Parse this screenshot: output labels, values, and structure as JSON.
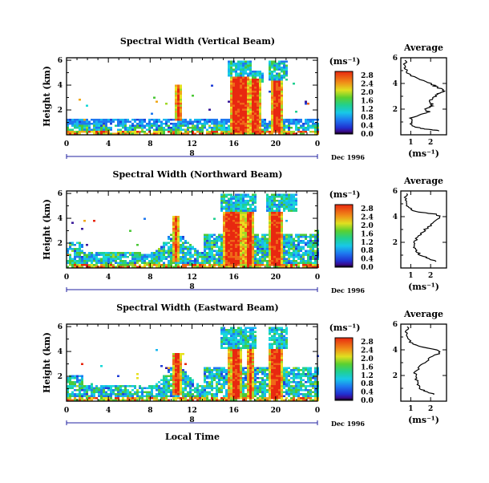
{
  "chart_data": {
    "type": "heatmap",
    "x_axis_label": "Local Time",
    "date_label": "Dec 1996",
    "day_tick": "8",
    "x_ticks": [
      "0",
      "4",
      "8",
      "12",
      "16",
      "20",
      "0"
    ],
    "y_ticks": [
      "2",
      "4",
      "6"
    ],
    "colorbar_ticks": [
      "0.0",
      "0.4",
      "0.8",
      "1.2",
      "1.6",
      "2.0",
      "2.4",
      "2.8"
    ],
    "colorbar_range": [
      0.0,
      3.0
    ],
    "unit_label": "(ms⁻¹)",
    "y_axis_label": "Height (km)",
    "panels": [
      {
        "title": "Spectral Width (Vertical Beam)",
        "avg_title": "Average",
        "avg_x_ticks": [
          "1",
          "2"
        ],
        "avg_xlabel": "(ms⁻¹)",
        "avg_xlim": [
          0.5,
          2.8
        ],
        "avg_ylim": [
          0,
          6
        ],
        "avg_profile": [
          [
            0.3,
            2.5
          ],
          [
            0.4,
            2.0
          ],
          [
            0.5,
            1.5
          ],
          [
            0.7,
            1.1
          ],
          [
            1.0,
            1.0
          ],
          [
            1.3,
            1.05
          ],
          [
            1.6,
            1.6
          ],
          [
            1.8,
            1.9
          ],
          [
            2.0,
            1.7
          ],
          [
            2.2,
            2.0
          ],
          [
            2.4,
            2.1
          ],
          [
            2.6,
            1.9
          ],
          [
            2.8,
            2.1
          ],
          [
            3.0,
            2.2
          ],
          [
            3.2,
            2.4
          ],
          [
            3.4,
            2.7
          ],
          [
            3.6,
            2.5
          ],
          [
            3.8,
            2.2
          ],
          [
            4.0,
            2.0
          ],
          [
            4.3,
            1.5
          ],
          [
            4.6,
            1.0
          ],
          [
            4.9,
            0.8
          ],
          [
            5.2,
            0.75
          ],
          [
            5.5,
            0.72
          ],
          [
            5.8,
            0.7
          ]
        ]
      },
      {
        "title": "Spectral Width (Northward Beam)",
        "avg_title": "Average",
        "avg_x_ticks": [
          "1",
          "2"
        ],
        "avg_xlabel": "(ms⁻¹)",
        "avg_xlim": [
          0.5,
          2.8
        ],
        "avg_ylim": [
          0,
          6
        ],
        "avg_profile": [
          [
            0.5,
            2.3
          ],
          [
            0.8,
            1.8
          ],
          [
            1.0,
            1.5
          ],
          [
            1.3,
            1.3
          ],
          [
            1.6,
            1.2
          ],
          [
            2.0,
            1.2
          ],
          [
            2.4,
            1.3
          ],
          [
            2.8,
            1.6
          ],
          [
            3.2,
            1.9
          ],
          [
            3.6,
            2.1
          ],
          [
            4.0,
            2.5
          ],
          [
            4.2,
            2.2
          ],
          [
            4.4,
            1.2
          ],
          [
            4.7,
            0.9
          ],
          [
            5.0,
            0.8
          ],
          [
            5.4,
            0.75
          ],
          [
            5.8,
            0.8
          ]
        ]
      },
      {
        "title": "Spectral Width (Eastward Beam)",
        "avg_title": "Average",
        "avg_x_ticks": [
          "1",
          "2"
        ],
        "avg_xlabel": "(ms⁻¹)",
        "avg_xlim": [
          0.5,
          2.8
        ],
        "avg_ylim": [
          0,
          6
        ],
        "avg_profile": [
          [
            0.5,
            2.2
          ],
          [
            0.8,
            1.7
          ],
          [
            1.0,
            1.5
          ],
          [
            1.4,
            1.3
          ],
          [
            1.8,
            1.3
          ],
          [
            2.2,
            1.2
          ],
          [
            2.6,
            1.4
          ],
          [
            3.0,
            1.7
          ],
          [
            3.4,
            2.0
          ],
          [
            3.8,
            2.5
          ],
          [
            4.0,
            2.3
          ],
          [
            4.3,
            1.3
          ],
          [
            4.6,
            1.0
          ],
          [
            5.0,
            0.85
          ],
          [
            5.4,
            0.8
          ],
          [
            5.8,
            0.82
          ]
        ]
      }
    ]
  }
}
